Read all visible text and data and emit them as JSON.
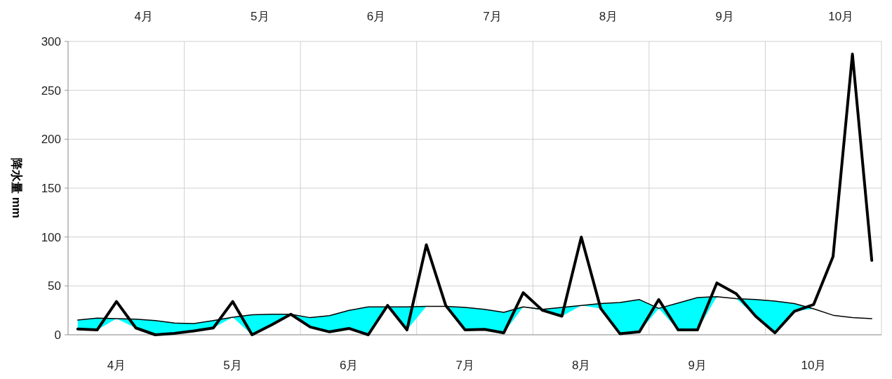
{
  "chart_data": {
    "type": "line",
    "ylabel": "降水量 mm",
    "categories": [
      null,
      null,
      "4月",
      null,
      null,
      null,
      null,
      null,
      "5月",
      null,
      null,
      null,
      null,
      null,
      "6月",
      null,
      null,
      null,
      null,
      null,
      "7月",
      null,
      null,
      null,
      null,
      null,
      "8月",
      null,
      null,
      null,
      null,
      null,
      "9月",
      null,
      null,
      null,
      null,
      null,
      "10月",
      null,
      null,
      null
    ],
    "annotations": [
      "4月",
      "5月",
      "6月",
      "7月",
      "8月",
      "9月",
      "10月"
    ],
    "series": [
      {
        "color": "#000000",
        "values": [
          15,
          17,
          16.5,
          16,
          14.5,
          12,
          11.5,
          14.5,
          18,
          20.5,
          21,
          21,
          17.5,
          19.5,
          25,
          28.5,
          28.5,
          28.5,
          29,
          29,
          28,
          26,
          23,
          28.5,
          26,
          28,
          30,
          32,
          33,
          36,
          27,
          32.5,
          38,
          39,
          37,
          36,
          34.5,
          32,
          26.5,
          20,
          17.5,
          16.5
        ],
        "upper": [
          15,
          17,
          16.5,
          16,
          14.5,
          12,
          11.5,
          14.5,
          18,
          20.5,
          21,
          21,
          17.5,
          19.5,
          25,
          28.5,
          28.5,
          28.5,
          29,
          29,
          28,
          26,
          23,
          28.5,
          26,
          28,
          30,
          32,
          33,
          36,
          27,
          32.5,
          38,
          39,
          37,
          36,
          34.5,
          32,
          26.5,
          20,
          17.5,
          16.5
        ],
        "lower": [
          6,
          5,
          16.5,
          7,
          0,
          1.5,
          4,
          7,
          18,
          0,
          10,
          21,
          8,
          3,
          6.5,
          0,
          28.5,
          5,
          29,
          29,
          5,
          5.5,
          2,
          28.5,
          25,
          19,
          30,
          27,
          1,
          3,
          27,
          5,
          5,
          39,
          37,
          19,
          2,
          24,
          26.5,
          20,
          17.5,
          16.5
        ]
      },
      {
        "color": "#000000",
        "values": [
          6,
          5,
          34,
          7,
          0,
          1.5,
          4,
          7,
          34,
          0,
          10,
          21,
          8,
          3,
          6.5,
          0,
          30,
          5,
          92,
          30,
          5,
          5.5,
          2,
          43,
          25,
          19,
          100,
          27,
          1,
          3,
          36,
          5,
          5,
          53,
          42,
          19,
          2,
          24,
          31,
          80,
          287,
          76
        ]
      }
    ],
    "ylim": [
      0,
      300
    ],
    "yticks": [
      0,
      50,
      100,
      150,
      200,
      250,
      300
    ],
    "grid": true,
    "marker": "none",
    "line_style": "solid"
  }
}
